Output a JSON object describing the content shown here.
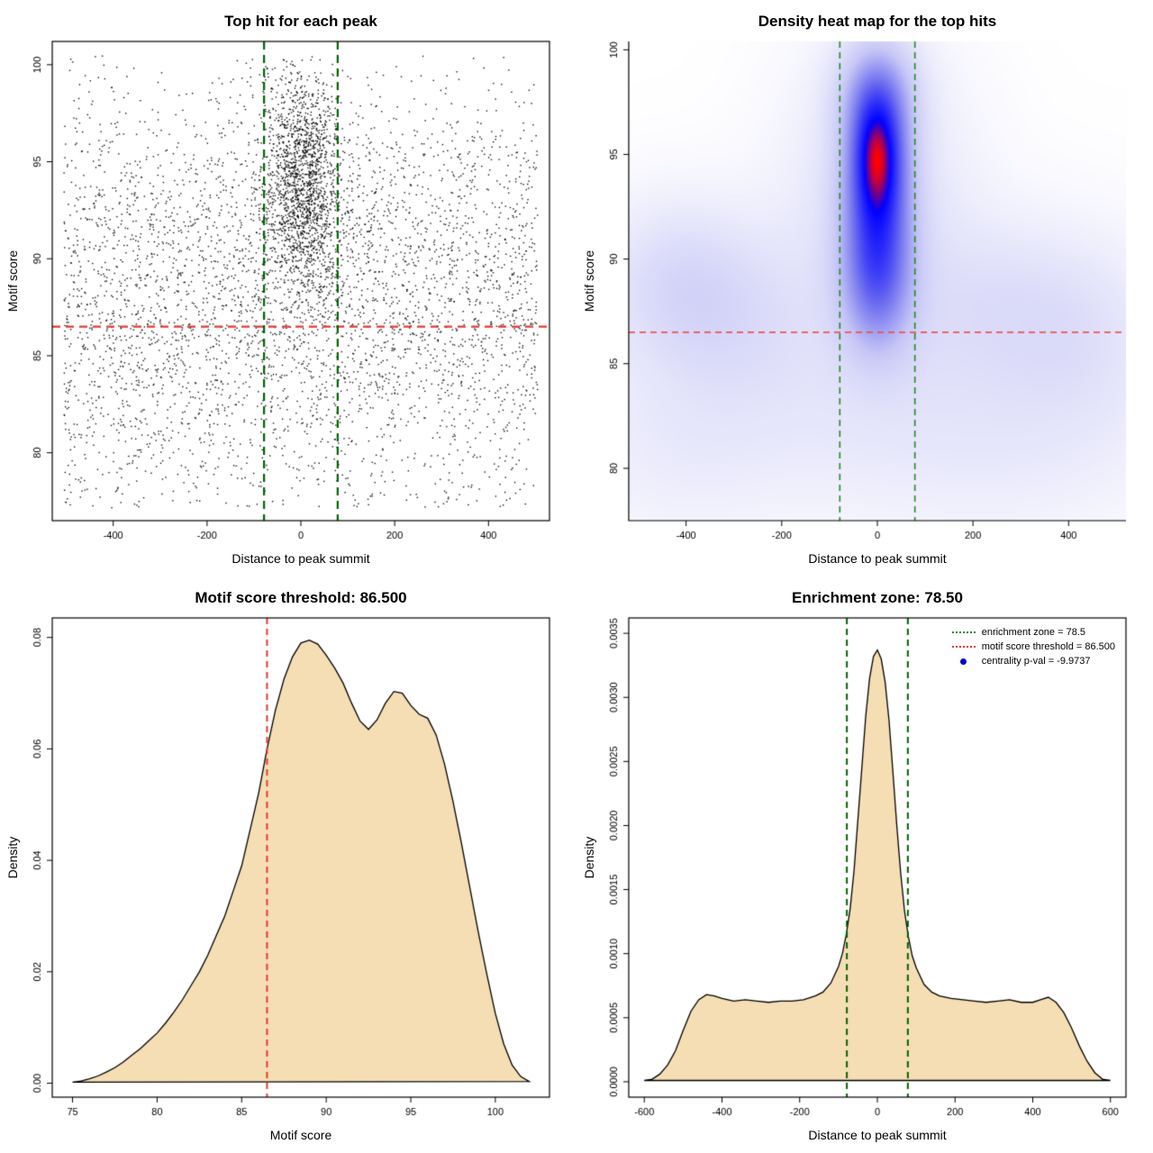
{
  "page": {
    "background": "#ffffff"
  },
  "chart_data": [
    {
      "type": "scatter",
      "title": "Top hit for each peak",
      "xlabel": "Distance to peak summit",
      "ylabel": "Motif score",
      "xlim": [
        -530,
        530
      ],
      "ylim": [
        76.5,
        101.2
      ],
      "xticks": {
        "values": [
          -400,
          -200,
          0,
          200,
          400
        ],
        "labels": [
          "-400",
          "-200",
          "0",
          "200",
          "400"
        ]
      },
      "yticks": {
        "values": [
          80,
          85,
          90,
          95,
          100
        ],
        "labels": [
          "80",
          "85",
          "90",
          "95",
          "100"
        ]
      },
      "box": true,
      "grid": false,
      "point_color": "#000000",
      "point_size": 1.4,
      "seed": 7,
      "clusters": [
        {
          "n": 3300,
          "x": {
            "dist": "uniform",
            "min": -505,
            "max": 505
          },
          "y": {
            "dist": "normal",
            "mean": 89.5,
            "sd": 4.8,
            "clip": [
              77,
              100.5
            ]
          }
        },
        {
          "n": 1600,
          "x": {
            "dist": "normal",
            "mean": 5,
            "sd": 40,
            "clip": [
              -505,
              505
            ]
          },
          "y": {
            "dist": "normal",
            "mean": 94,
            "sd": 2.8,
            "clip": [
              80,
              100.5
            ]
          }
        },
        {
          "n": 800,
          "x": {
            "dist": "uniform",
            "min": -505,
            "max": 505
          },
          "y": {
            "dist": "uniform",
            "min": 77.2,
            "max": 87
          }
        },
        {
          "n": 160,
          "x": {
            "dist": "normal",
            "mean": 5,
            "sd": 95,
            "clip": [
              -505,
              505
            ]
          },
          "y": {
            "dist": "uniform",
            "min": 86,
            "max": 100
          }
        }
      ],
      "hlines": [
        {
          "y": 86.5,
          "color": "#e53935",
          "width": 2.2,
          "dash": [
            9,
            6
          ]
        }
      ],
      "vlines": [
        {
          "x": -78.5,
          "color": "#006400",
          "width": 2.2,
          "dash": [
            9,
            6
          ]
        },
        {
          "x": 78.5,
          "color": "#006400",
          "width": 2.2,
          "dash": [
            9,
            6
          ]
        }
      ]
    },
    {
      "type": "heatmap",
      "title": "Density heat map for the top hits",
      "xlabel": "Distance to peak summit",
      "ylabel": "Motif score",
      "xlim": [
        -520,
        520
      ],
      "ylim": [
        77.5,
        100.4
      ],
      "xticks": {
        "values": [
          -400,
          -200,
          0,
          200,
          400
        ],
        "labels": [
          "-400",
          "-200",
          "0",
          "200",
          "400"
        ]
      },
      "yticks": {
        "values": [
          80,
          85,
          90,
          95,
          100
        ],
        "labels": [
          "80",
          "85",
          "90",
          "95",
          "100"
        ]
      },
      "box": false,
      "gamma": 0.8,
      "colormap_stops": [
        [
          0,
          255,
          255,
          255
        ],
        [
          0.3,
          198,
          198,
          246
        ],
        [
          0.55,
          112,
          112,
          240
        ],
        [
          0.85,
          0,
          0,
          255
        ],
        [
          1,
          255,
          0,
          0
        ]
      ],
      "kernels": [
        {
          "x": 0,
          "y": 95,
          "sx": 33,
          "sy": 1.9,
          "a": 1.0
        },
        {
          "x": 0,
          "y": 93.8,
          "sx": 50,
          "sy": 3.1,
          "a": 0.75
        },
        {
          "x": 0,
          "y": 90.5,
          "sx": 46,
          "sy": 2.6,
          "a": 0.55
        },
        {
          "x": 0,
          "y": 88.3,
          "sx": 55,
          "sy": 2.2,
          "a": 0.38
        },
        {
          "x": 0,
          "y": 98,
          "sx": 55,
          "sy": 1.8,
          "a": 0.5
        },
        {
          "x": 0,
          "y": 93.5,
          "sx": 130,
          "sy": 4.8,
          "a": 0.2
        },
        {
          "x": -430,
          "y": 89,
          "sx": 100,
          "sy": 2.6,
          "a": 0.2
        },
        {
          "x": -300,
          "y": 87.5,
          "sx": 110,
          "sy": 2.8,
          "a": 0.15
        },
        {
          "x": 250,
          "y": 88,
          "sx": 120,
          "sy": 2.6,
          "a": 0.13
        },
        {
          "x": 430,
          "y": 86.5,
          "sx": 110,
          "sy": 3.0,
          "a": 0.13
        },
        {
          "x": 0,
          "y": 86.5,
          "sx": 480,
          "sy": 4.2,
          "a": 0.09
        },
        {
          "x": -80,
          "y": 82,
          "sx": 380,
          "sy": 3.4,
          "a": 0.09
        },
        {
          "x": 300,
          "y": 81,
          "sx": 220,
          "sy": 3.2,
          "a": 0.07
        },
        {
          "x": -420,
          "y": 80.5,
          "sx": 140,
          "sy": 3.0,
          "a": 0.06
        }
      ],
      "hlines": [
        {
          "y": 86.5,
          "color": "#ef5350",
          "width": 1.6,
          "dash": [
            7,
            5
          ]
        }
      ],
      "vlines": [
        {
          "x": -78.5,
          "color": "#228B22",
          "width": 1.6,
          "dash": [
            7,
            5
          ]
        },
        {
          "x": 78.5,
          "color": "#228B22",
          "width": 1.6,
          "dash": [
            7,
            5
          ]
        }
      ]
    },
    {
      "type": "density",
      "title": "Motif score threshold: 86.500",
      "xlabel": "Motif score",
      "ylabel": "Density",
      "xlim": [
        73.8,
        103.2
      ],
      "ylim": [
        -0.0025,
        0.0835
      ],
      "xticks": {
        "values": [
          75,
          80,
          85,
          90,
          95,
          100
        ],
        "labels": [
          "75",
          "80",
          "85",
          "90",
          "95",
          "100"
        ]
      },
      "yticks": {
        "values": [
          0,
          0.02,
          0.04,
          0.06,
          0.08
        ],
        "labels": [
          "0.00",
          "0.02",
          "0.04",
          "0.06",
          "0.08"
        ]
      },
      "box": true,
      "fill_color": "#f5deb3",
      "line_color": "#000000",
      "curve": [
        [
          75,
          0.0002
        ],
        [
          75.5,
          0.0004
        ],
        [
          76,
          0.0008
        ],
        [
          76.5,
          0.0013
        ],
        [
          77,
          0.002
        ],
        [
          77.5,
          0.0028
        ],
        [
          78,
          0.0038
        ],
        [
          78.5,
          0.005
        ],
        [
          79,
          0.0062
        ],
        [
          79.5,
          0.0076
        ],
        [
          80,
          0.009
        ],
        [
          80.5,
          0.0108
        ],
        [
          81,
          0.0128
        ],
        [
          81.5,
          0.015
        ],
        [
          82,
          0.0175
        ],
        [
          82.5,
          0.02
        ],
        [
          83,
          0.023
        ],
        [
          83.5,
          0.0265
        ],
        [
          84,
          0.03
        ],
        [
          84.5,
          0.0345
        ],
        [
          85,
          0.039
        ],
        [
          85.5,
          0.0455
        ],
        [
          86,
          0.052
        ],
        [
          86.5,
          0.06
        ],
        [
          87,
          0.067
        ],
        [
          87.5,
          0.0725
        ],
        [
          88,
          0.0765
        ],
        [
          88.5,
          0.079
        ],
        [
          89,
          0.0795
        ],
        [
          89.5,
          0.0788
        ],
        [
          90,
          0.0768
        ],
        [
          90.5,
          0.0745
        ],
        [
          91,
          0.0718
        ],
        [
          91.5,
          0.0682
        ],
        [
          92,
          0.065
        ],
        [
          92.5,
          0.0635
        ],
        [
          93,
          0.0652
        ],
        [
          93.5,
          0.0682
        ],
        [
          94,
          0.0703
        ],
        [
          94.5,
          0.07
        ],
        [
          95,
          0.0678
        ],
        [
          95.5,
          0.0662
        ],
        [
          96,
          0.0655
        ],
        [
          96.5,
          0.0625
        ],
        [
          97,
          0.0572
        ],
        [
          97.5,
          0.0505
        ],
        [
          98,
          0.043
        ],
        [
          98.5,
          0.035
        ],
        [
          99,
          0.027
        ],
        [
          99.5,
          0.0195
        ],
        [
          100,
          0.0125
        ],
        [
          100.5,
          0.007
        ],
        [
          101,
          0.0032
        ],
        [
          101.5,
          0.0012
        ],
        [
          102,
          0.0003
        ]
      ],
      "vlines": [
        {
          "x": 86.5,
          "color": "#e53935",
          "width": 2,
          "dash": [
            7,
            5
          ]
        }
      ]
    },
    {
      "type": "density",
      "title": "Enrichment zone: 78.50",
      "xlabel": "Distance to peak summit",
      "ylabel": "Density",
      "xlim": [
        -640,
        640
      ],
      "ylim": [
        -0.00012,
        0.00362
      ],
      "xticks": {
        "values": [
          -600,
          -400,
          -200,
          0,
          200,
          400,
          600
        ],
        "labels": [
          "-600",
          "-400",
          "-200",
          "0",
          "200",
          "400",
          "600"
        ]
      },
      "yticks": {
        "values": [
          0,
          0.0005,
          0.001,
          0.0015,
          0.002,
          0.0025,
          0.003,
          0.0035
        ],
        "labels": [
          "0.0000",
          "0.0005",
          "0.0010",
          "0.0015",
          "0.0020",
          "0.0025",
          "0.0030",
          "0.0035"
        ]
      },
      "box": true,
      "fill_color": "#f5deb3",
      "line_color": "#000000",
      "curve": [
        [
          -600,
          1e-05
        ],
        [
          -580,
          2e-05
        ],
        [
          -560,
          6e-05
        ],
        [
          -540,
          0.00013
        ],
        [
          -520,
          0.00024
        ],
        [
          -500,
          0.0004
        ],
        [
          -480,
          0.00055
        ],
        [
          -460,
          0.00064
        ],
        [
          -440,
          0.00068
        ],
        [
          -420,
          0.00067
        ],
        [
          -400,
          0.00065
        ],
        [
          -370,
          0.00063
        ],
        [
          -340,
          0.00064
        ],
        [
          -310,
          0.00063
        ],
        [
          -280,
          0.00062
        ],
        [
          -250,
          0.00063
        ],
        [
          -220,
          0.00063
        ],
        [
          -190,
          0.00064
        ],
        [
          -160,
          0.00067
        ],
        [
          -140,
          0.0007
        ],
        [
          -120,
          0.00077
        ],
        [
          -100,
          0.0009
        ],
        [
          -90,
          0.001
        ],
        [
          -80,
          0.00115
        ],
        [
          -70,
          0.00135
        ],
        [
          -60,
          0.00165
        ],
        [
          -50,
          0.00205
        ],
        [
          -40,
          0.00245
        ],
        [
          -30,
          0.00285
        ],
        [
          -20,
          0.00315
        ],
        [
          -10,
          0.00332
        ],
        [
          0,
          0.00337
        ],
        [
          10,
          0.0033
        ],
        [
          20,
          0.00312
        ],
        [
          30,
          0.00282
        ],
        [
          40,
          0.00242
        ],
        [
          50,
          0.002
        ],
        [
          60,
          0.00163
        ],
        [
          70,
          0.00133
        ],
        [
          80,
          0.00113
        ],
        [
          90,
          0.00098
        ],
        [
          100,
          0.00089
        ],
        [
          120,
          0.00076
        ],
        [
          140,
          0.0007
        ],
        [
          160,
          0.00067
        ],
        [
          190,
          0.00065
        ],
        [
          220,
          0.00064
        ],
        [
          250,
          0.00063
        ],
        [
          280,
          0.00062
        ],
        [
          310,
          0.00063
        ],
        [
          340,
          0.00064
        ],
        [
          370,
          0.00062
        ],
        [
          400,
          0.00062
        ],
        [
          420,
          0.00064
        ],
        [
          440,
          0.00066
        ],
        [
          460,
          0.00062
        ],
        [
          480,
          0.00054
        ],
        [
          500,
          0.00042
        ],
        [
          520,
          0.00028
        ],
        [
          540,
          0.00016
        ],
        [
          560,
          7e-05
        ],
        [
          580,
          2e-05
        ],
        [
          600,
          1e-05
        ]
      ],
      "vlines": [
        {
          "x": -78.5,
          "color": "#006400",
          "width": 2,
          "dash": [
            7,
            5
          ]
        },
        {
          "x": 78.5,
          "color": "#006400",
          "width": 2,
          "dash": [
            7,
            5
          ]
        }
      ],
      "legend": {
        "items": [
          {
            "label": "enrichment zone = 78.5",
            "color": "#228B22",
            "type": "dotted-line"
          },
          {
            "label": "motif score threshold = 86.500",
            "color": "#e53935",
            "type": "dotted-line"
          },
          {
            "label": "centrality p-val = -9.9737",
            "color": "#0000cc",
            "type": "point"
          }
        ]
      }
    }
  ]
}
